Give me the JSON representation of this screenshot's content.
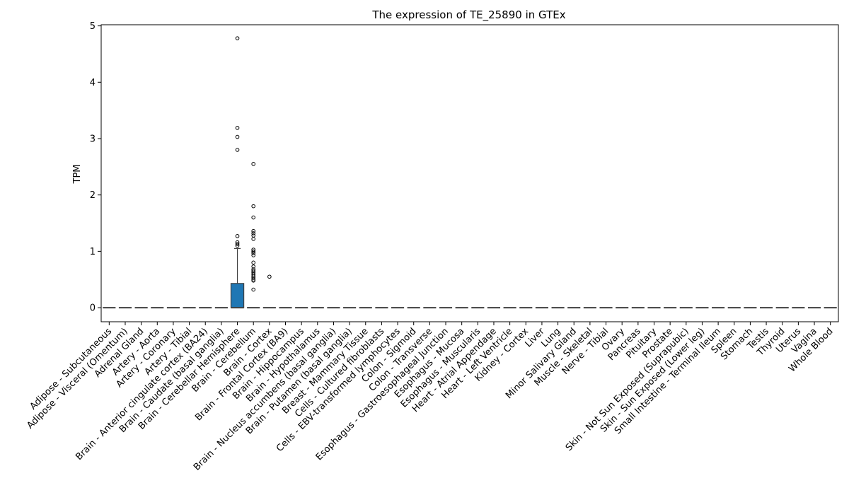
{
  "chart_data": {
    "type": "box",
    "title": "The expression of TE_25890 in GTEx",
    "xlabel": "",
    "ylabel": "TPM",
    "ylim": [
      -0.25,
      5.02
    ],
    "yticks": [
      0,
      1,
      2,
      3,
      4,
      5
    ],
    "grid": false,
    "legend": "none",
    "box_color": "#1f77b4",
    "categories": [
      "Adipose - Subcutaneous",
      "Adipose - Visceral (Omentum)",
      "Adrenal Gland",
      "Artery - Aorta",
      "Artery - Coronary",
      "Artery - Tibial",
      "Brain - Anterior cingulate cortex (BA24)",
      "Brain - Caudate (basal ganglia)",
      "Brain - Cerebellar Hemisphere",
      "Brain - Cerebellum",
      "Brain - Cortex",
      "Brain - Frontal Cortex (BA9)",
      "Brain - Hippocampus",
      "Brain - Hypothalamus",
      "Brain - Nucleus accumbens (basal ganglia)",
      "Brain - Putamen (basal ganglia)",
      "Breast - Mammary Tissue",
      "Cells - Cultured fibroblasts",
      "Cells - EBV-transformed lymphocytes",
      "Colon - Sigmoid",
      "Colon - Transverse",
      "Esophagus - Gastroesophageal Junction",
      "Esophagus - Mucosa",
      "Esophagus - Muscularis",
      "Heart - Atrial Appendage",
      "Heart - Left Ventricle",
      "Kidney - Cortex",
      "Liver",
      "Lung",
      "Minor Salivary Gland",
      "Muscle - Skeletal",
      "Nerve - Tibial",
      "Ovary",
      "Pancreas",
      "Pituitary",
      "Prostate",
      "Skin - Not Sun Exposed (Suprapubic)",
      "Skin - Sun Exposed (Lower leg)",
      "Small Intestine - Terminal Ileum",
      "Spleen",
      "Stomach",
      "Testis",
      "Thyroid",
      "Uterus",
      "Vagina",
      "Whole Blood"
    ],
    "boxes": [
      {
        "category": "Brain - Cerebellar Hemisphere",
        "q1": 0,
        "median": 0,
        "q3": 0.43,
        "whisker_low": 0,
        "whisker_high": 1.05,
        "outliers": [
          1.1,
          1.13,
          1.16,
          1.27,
          2.8,
          3.03,
          3.19,
          4.78
        ]
      },
      {
        "category": "Brain - Cerebellum",
        "q1": 0,
        "median": 0,
        "q3": 0,
        "whisker_low": 0,
        "whisker_high": 0,
        "outliers": [
          0.32,
          0.48,
          0.5,
          0.53,
          0.56,
          0.59,
          0.62,
          0.65,
          0.68,
          0.73,
          0.8,
          0.93,
          0.97,
          1.0,
          1.03,
          1.22,
          1.28,
          1.32,
          1.36,
          1.6,
          1.8,
          2.55
        ]
      },
      {
        "category": "Brain - Cortex",
        "q1": 0,
        "median": 0,
        "q3": 0,
        "whisker_low": 0,
        "whisker_high": 0,
        "outliers": [
          0.55
        ]
      }
    ]
  }
}
